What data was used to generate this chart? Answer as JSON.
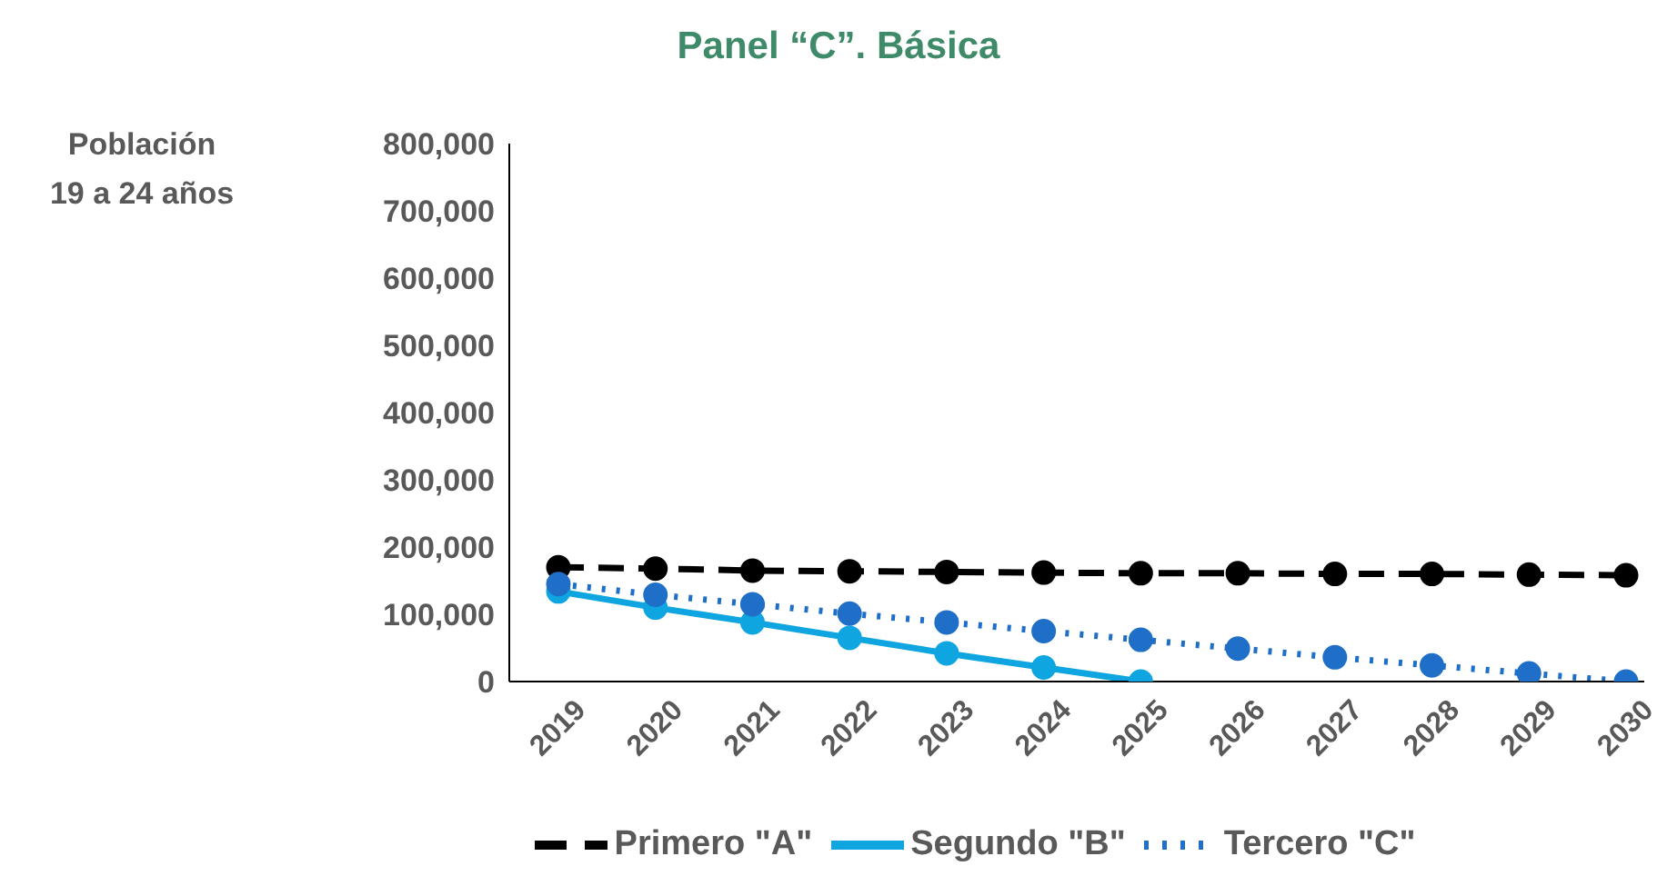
{
  "chart_data": {
    "type": "line",
    "title": "Panel “C”.  Básica",
    "ylabel": "Población\n19 a 24 años",
    "categories": [
      "2019",
      "2020",
      "2021",
      "2022",
      "2023",
      "2024",
      "2025",
      "2026",
      "2027",
      "2028",
      "2029",
      "2030"
    ],
    "series": [
      {
        "name": "Primero \"A\"",
        "color": "#000000",
        "line_style": "dashed",
        "values": [
          170000,
          168000,
          165000,
          164000,
          163000,
          162000,
          161000,
          161000,
          160000,
          160000,
          159000,
          158000
        ]
      },
      {
        "name": "Segundo \"B\"",
        "color": "#0ea5e0",
        "line_style": "solid",
        "values": [
          134000,
          110000,
          88000,
          65000,
          42000,
          21000,
          0,
          null,
          null,
          null,
          null,
          null
        ]
      },
      {
        "name": "Tercero \"C\"",
        "color": "#1f6fc8",
        "line_style": "dotted",
        "values": [
          145000,
          129000,
          115000,
          101000,
          88000,
          75000,
          62000,
          49000,
          36000,
          24000,
          12000,
          0
        ]
      }
    ],
    "ylim": [
      0,
      800000
    ],
    "yticks": [
      0,
      {
        "value": 100000,
        "label": "100,000"
      },
      {
        "value": 200000,
        "label": "200,000"
      },
      {
        "value": 300000,
        "label": "300,000"
      },
      {
        "value": 400000,
        "label": "400,000"
      },
      {
        "value": 500000,
        "label": "500,000"
      },
      {
        "value": 600000,
        "label": "600,000"
      },
      {
        "value": 700000,
        "label": "700,000"
      },
      {
        "value": 800000,
        "label": "800,000"
      }
    ],
    "grid": false,
    "legend": "bottom",
    "marker": "circle"
  }
}
